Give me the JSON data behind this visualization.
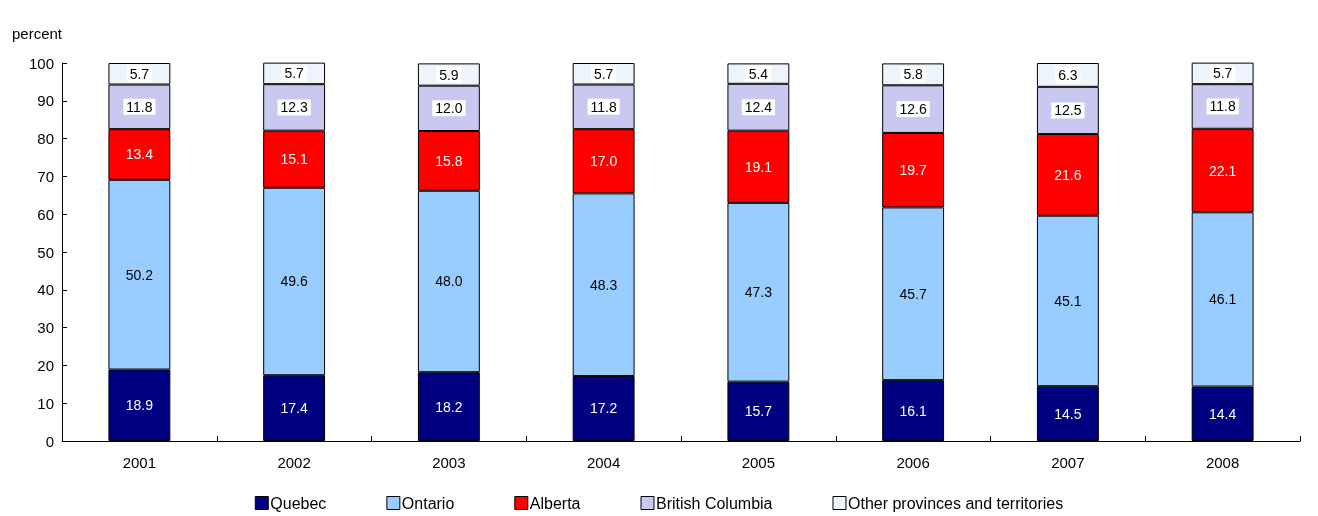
{
  "chart_data": {
    "type": "bar",
    "stacked": true,
    "ylabel": "percent",
    "categories": [
      "2001",
      "2002",
      "2003",
      "2004",
      "2005",
      "2006",
      "2007",
      "2008"
    ],
    "series": [
      {
        "name": "Quebec",
        "color": "#000080",
        "values": [
          18.9,
          17.4,
          18.2,
          17.2,
          15.7,
          16.1,
          14.5,
          14.4
        ],
        "value_labels": [
          "18.9",
          "17.4",
          "18.2",
          "17.2",
          "15.7",
          "16.1",
          "14.5",
          "14.4"
        ]
      },
      {
        "name": "Ontario",
        "color": "#99ccff",
        "values": [
          50.2,
          49.6,
          48.0,
          48.3,
          47.3,
          45.7,
          45.1,
          46.1
        ],
        "value_labels": [
          "50.2",
          "49.6",
          "48.0",
          "48.3",
          "47.3",
          "45.7",
          "45.1",
          "46.1"
        ]
      },
      {
        "name": "Alberta",
        "color": "#ff0000",
        "values": [
          13.4,
          15.1,
          15.8,
          17.0,
          19.1,
          19.7,
          21.6,
          22.1
        ],
        "value_labels": [
          "13.4",
          "15.1",
          "15.8",
          "17.0",
          "19.1",
          "19.7",
          "21.6",
          "22.1"
        ]
      },
      {
        "name": "British Columbia",
        "color": "#c8c8f0",
        "values": [
          11.8,
          12.3,
          12.0,
          11.8,
          12.4,
          12.6,
          12.5,
          11.8
        ],
        "value_labels": [
          "11.8",
          "12.3",
          "12.0",
          "11.8",
          "12.4",
          "12.6",
          "12.5",
          "11.8"
        ]
      },
      {
        "name": "Other provinces and territories",
        "color": "#eef4fb",
        "values": [
          5.7,
          5.7,
          5.9,
          5.7,
          5.4,
          5.8,
          6.3,
          5.7
        ],
        "value_labels": [
          "5.7",
          "5.7",
          "5.9",
          "5.7",
          "5.4",
          "5.8",
          "6.3",
          "5.7"
        ]
      }
    ],
    "ylim": [
      0,
      100
    ],
    "yticks": [
      0,
      10,
      20,
      30,
      40,
      50,
      60,
      70,
      80,
      90,
      100
    ],
    "grid": false,
    "legend": "bottom"
  }
}
